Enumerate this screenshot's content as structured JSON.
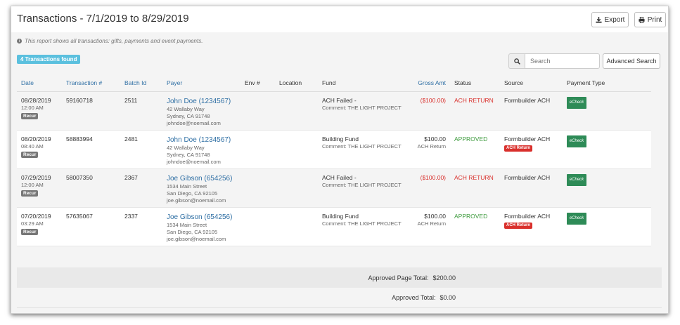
{
  "header": {
    "title": "Transactions - 7/1/2019 to 8/29/2019",
    "export_label": "Export",
    "print_label": "Print"
  },
  "note": "This report shows all transactions: gifts, payments and event payments.",
  "badge": "4 Transactions found",
  "search": {
    "placeholder": "Search"
  },
  "advanced_search_label": "Advanced Search",
  "columns": {
    "date": "Date",
    "transaction": "Transaction #",
    "batch": "Batch Id",
    "payer": "Payer",
    "env": "Env #",
    "location": "Location",
    "fund": "Fund",
    "gross": "Gross Amt",
    "status": "Status",
    "source": "Source",
    "payment_type": "Payment Type"
  },
  "rows": [
    {
      "date": "08/28/2019",
      "time": "12:00 AM",
      "recur": "Recur",
      "transaction": "59160718",
      "batch": "2511",
      "payer_name": "John Doe (1234567)",
      "addr1": "42 Wallaby Way",
      "addr2": "Sydney, CA 91748",
      "email": "johndoe@noemail.com",
      "fund": "ACH Failed -",
      "comment": "Comment: THE LIGHT PROJECT",
      "gross": "($100.00)",
      "gross_sub": "",
      "status": "ACH RETURN",
      "source": "Formbuilder ACH",
      "source_tag": "",
      "payment_type": "eCheck"
    },
    {
      "date": "08/20/2019",
      "time": "08:40 AM",
      "recur": "Recur",
      "transaction": "58883994",
      "batch": "2481",
      "payer_name": "John Doe (1234567)",
      "addr1": "42 Wallaby Way",
      "addr2": "Sydney, CA 91748",
      "email": "johndoe@noemail.com",
      "fund": "Building Fund",
      "comment": "Comment: THE LIGHT PROJECT",
      "gross": "$100.00",
      "gross_sub": "ACH Return",
      "status": "APPROVED",
      "source": "Formbuilder ACH",
      "source_tag": "ACH Return",
      "payment_type": "eCheck"
    },
    {
      "date": "07/29/2019",
      "time": "12:00 AM",
      "recur": "Recur",
      "transaction": "58007350",
      "batch": "2367",
      "payer_name": "Joe Gibson (654256)",
      "addr1": "1534 Main Street",
      "addr2": "San Diego, CA 92105",
      "email": "joe.gibson@noemail.com",
      "fund": "ACH Failed -",
      "comment": "Comment: THE LIGHT PROJECT",
      "gross": "($100.00)",
      "gross_sub": "",
      "status": "ACH RETURN",
      "source": "Formbuilder ACH",
      "source_tag": "",
      "payment_type": "eCheck"
    },
    {
      "date": "07/20/2019",
      "time": "03:29 AM",
      "recur": "Recur",
      "transaction": "57635067",
      "batch": "2337",
      "payer_name": "Joe Gibson (654256)",
      "addr1": "1534 Main Street",
      "addr2": "San Diego, CA 92105",
      "email": "joe.gibson@noemail.com",
      "fund": "Building Fund",
      "comment": "Comment: THE LIGHT PROJECT",
      "gross": "$100.00",
      "gross_sub": "ACH Return",
      "status": "APPROVED",
      "source": "Formbuilder ACH",
      "source_tag": "ACH Return",
      "payment_type": "eCheck"
    }
  ],
  "totals": {
    "page_label": "Approved Page Total:",
    "page_value": "$200.00",
    "total_label": "Approved Total:",
    "total_value": "$0.00"
  }
}
